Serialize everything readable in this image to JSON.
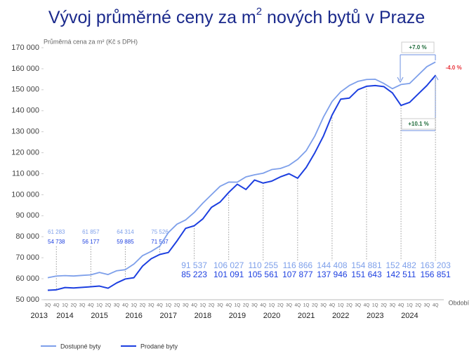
{
  "chart_data": {
    "type": "line",
    "title": {
      "text": "Vývoj průměrné ceny za m",
      "sup": "2",
      "rest": " nových bytů v Praze"
    },
    "y_axis_label": "Průměrná cena za m² (Kč s DPH)",
    "x_axis_label": "Období",
    "categories": [
      "3Q",
      "4Q",
      "1Q",
      "2Q",
      "3Q",
      "4Q",
      "1Q",
      "2Q",
      "3Q",
      "4Q",
      "1Q",
      "2Q",
      "3Q",
      "4Q",
      "1Q",
      "2Q",
      "3Q",
      "4Q",
      "1Q",
      "2Q",
      "3Q",
      "4Q",
      "1Q",
      "2Q",
      "3Q",
      "4Q",
      "1Q",
      "2Q",
      "3Q",
      "4Q",
      "1Q",
      "2Q",
      "3Q",
      "4Q",
      "1Q",
      "2Q",
      "3Q",
      "4Q",
      "1Q",
      "2Q",
      "3Q",
      "4Q",
      "1Q",
      "2Q",
      "3Q",
      "4Q"
    ],
    "years": [
      "2013",
      "2014",
      "2015",
      "2016",
      "2017",
      "2018",
      "2019",
      "2020",
      "2021",
      "2022",
      "2023",
      "2024"
    ],
    "series": [
      {
        "name": "Dostupné byty",
        "color": "#7d9fea",
        "values": [
          60500,
          61283,
          61500,
          61300,
          61600,
          61857,
          63000,
          62000,
          63800,
          64314,
          67000,
          71000,
          73000,
          75526,
          82000,
          86000,
          88000,
          91537,
          96000,
          100000,
          104000,
          106027,
          106000,
          108500,
          109500,
          110255,
          112000,
          112500,
          114000,
          116866,
          121000,
          128000,
          137000,
          144408,
          149000,
          152000,
          154000,
          154881,
          155000,
          153000,
          150500,
          152482,
          153000,
          157000,
          161000,
          163203
        ],
        "value_labels": [
          null,
          "61 283",
          null,
          null,
          null,
          "61 857",
          null,
          null,
          null,
          "64 314",
          null,
          null,
          null,
          "75 526",
          null,
          null,
          null,
          "91 537",
          null,
          null,
          null,
          "106 027",
          null,
          null,
          null,
          "110 255",
          null,
          null,
          null,
          "116 866",
          null,
          null,
          null,
          "144 408",
          null,
          null,
          null,
          "154 881",
          null,
          null,
          null,
          "152 482",
          null,
          null,
          null,
          "163 203"
        ]
      },
      {
        "name": "Prodané byty",
        "color": "#1c3fe0",
        "values": [
          54500,
          54738,
          55800,
          55600,
          55900,
          56177,
          56500,
          55500,
          58000,
          59885,
          60500,
          66000,
          69500,
          71567,
          72500,
          78000,
          84000,
          85223,
          88500,
          94000,
          96500,
          101091,
          105000,
          102500,
          107000,
          105561,
          106500,
          108500,
          110000,
          107877,
          113000,
          120000,
          128000,
          137946,
          145500,
          146000,
          150000,
          151643,
          152000,
          151500,
          148500,
          142511,
          144000,
          148000,
          152000,
          156851
        ],
        "value_labels": [
          null,
          "54 738",
          null,
          null,
          null,
          "56 177",
          null,
          null,
          null,
          "59 885",
          null,
          null,
          null,
          "71 567",
          null,
          null,
          null,
          "85 223",
          null,
          null,
          null,
          "101 091",
          null,
          null,
          null,
          "105 561",
          null,
          null,
          null,
          "107 877",
          null,
          null,
          null,
          "137 946",
          null,
          null,
          null,
          "151 643",
          null,
          null,
          null,
          "142 511",
          null,
          null,
          null,
          "156 851"
        ]
      }
    ],
    "ylim": [
      50000,
      170000
    ],
    "yticks": [
      {
        "value": 50000,
        "label": "50 000"
      },
      {
        "value": 60000,
        "label": "60 000"
      },
      {
        "value": 70000,
        "label": "70 000"
      },
      {
        "value": 80000,
        "label": "80 000"
      },
      {
        "value": 90000,
        "label": "90 000"
      },
      {
        "value": 100000,
        "label": "100 000"
      },
      {
        "value": 110000,
        "label": "110 000"
      },
      {
        "value": 120000,
        "label": "120 000"
      },
      {
        "value": 130000,
        "label": "130 000"
      },
      {
        "value": 140000,
        "label": "140 000"
      },
      {
        "value": 150000,
        "label": "150 000"
      },
      {
        "value": 160000,
        "label": "160 000"
      },
      {
        "value": 170000,
        "label": "170 000"
      }
    ],
    "grid": false,
    "annotations": [
      {
        "text": "+7.0 %",
        "color": "#1e6b3a"
      },
      {
        "text": "-4.0 %",
        "color": "#e8333a"
      },
      {
        "text": "+10.1 %",
        "color": "#1e6b3a"
      }
    ]
  }
}
